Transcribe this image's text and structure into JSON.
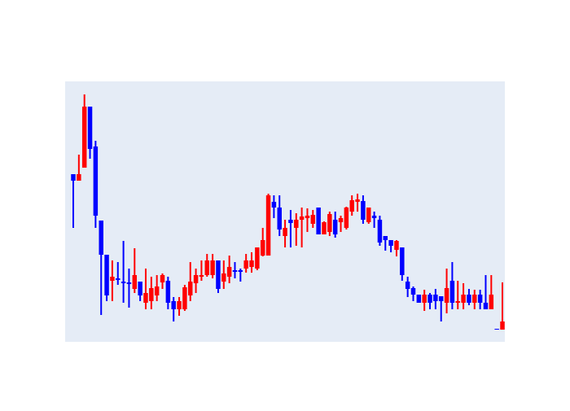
{
  "chart_data": {
    "type": "candlestick",
    "open": [
      206,
      198,
      214,
      289,
      240,
      149,
      107,
      75,
      78,
      74,
      73,
      65,
      74,
      48,
      50,
      57,
      73,
      75,
      50,
      40,
      40,
      57,
      72,
      80,
      82,
      82,
      100,
      74,
      80,
      88,
      88,
      90,
      92,
      90,
      106,
      106,
      172,
      165,
      130,
      150,
      140,
      150,
      152,
      145,
      165,
      132,
      135,
      150,
      147,
      140,
      160,
      172,
      173,
      147,
      155,
      150,
      130,
      125,
      113,
      116,
      74,
      66,
      58,
      48,
      58,
      58,
      56,
      48,
      75,
      48,
      48,
      58,
      48,
      58,
      48,
      40,
      16,
      15
    ],
    "high": [
      206,
      230,
      304,
      289,
      247,
      149,
      107,
      100,
      98,
      124,
      90,
      115,
      74,
      90,
      80,
      82,
      84,
      80,
      55,
      55,
      70,
      98,
      90,
      100,
      108,
      108,
      100,
      100,
      106,
      98,
      90,
      108,
      110,
      116,
      140,
      182,
      180,
      180,
      150,
      162,
      158,
      165,
      164,
      162,
      165,
      148,
      160,
      160,
      155,
      166,
      180,
      182,
      180,
      165,
      160,
      155,
      130,
      125,
      125,
      116,
      80,
      68,
      58,
      64,
      60,
      65,
      56,
      90,
      98,
      75,
      72,
      65,
      64,
      64,
      82,
      82,
      16,
      73
    ],
    "low": [
      140,
      198,
      214,
      225,
      140,
      33,
      50,
      50,
      70,
      48,
      42,
      60,
      50,
      40,
      40,
      50,
      65,
      40,
      25,
      32,
      38,
      50,
      60,
      75,
      80,
      78,
      60,
      65,
      72,
      78,
      74,
      85,
      85,
      88,
      105,
      106,
      152,
      130,
      116,
      116,
      118,
      116,
      135,
      140,
      132,
      132,
      130,
      128,
      135,
      138,
      155,
      160,
      145,
      145,
      140,
      118,
      112,
      110,
      105,
      75,
      55,
      50,
      48,
      38,
      40,
      40,
      25,
      35,
      40,
      40,
      40,
      45,
      40,
      40,
      40,
      40,
      15,
      15
    ],
    "close": [
      198,
      206,
      289,
      237,
      155,
      107,
      57,
      80,
      76,
      72,
      71,
      82,
      57,
      60,
      66,
      68,
      82,
      48,
      40,
      50,
      67,
      74,
      82,
      82,
      100,
      100,
      65,
      84,
      92,
      86,
      86,
      100,
      100,
      116,
      125,
      180,
      165,
      138,
      140,
      146,
      150,
      154,
      155,
      156,
      132,
      147,
      157,
      132,
      152,
      165,
      174,
      175,
      150,
      165,
      152,
      122,
      125,
      118,
      124,
      82,
      65,
      58,
      48,
      58,
      48,
      50,
      50,
      66,
      48,
      50,
      58,
      48,
      58,
      48,
      40,
      58,
      15,
      25
    ],
    "increasing_color": "#ff0000",
    "decreasing_color": "#0000ff",
    "ylim": [
      0,
      320
    ]
  }
}
